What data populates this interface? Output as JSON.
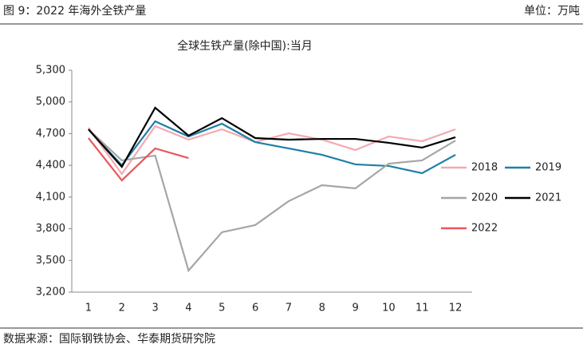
{
  "header": {
    "title": "图 9：2022 年海外全铁产量",
    "unit": "单位：万吨"
  },
  "chart_data": {
    "type": "line",
    "title": "全球生铁产量(除中国):当月",
    "categories": [
      "1",
      "2",
      "3",
      "4",
      "5",
      "6",
      "7",
      "8",
      "9",
      "10",
      "11",
      "12"
    ],
    "ylim": [
      3200,
      5300
    ],
    "yticks": [
      {
        "value": 3200,
        "label": "3,200"
      },
      {
        "value": 3500,
        "label": "3,500"
      },
      {
        "value": 3800,
        "label": "3,800"
      },
      {
        "value": 4100,
        "label": "4,100"
      },
      {
        "value": 4400,
        "label": "4,400"
      },
      {
        "value": 4700,
        "label": "4,700"
      },
      {
        "value": 5000,
        "label": "5,000"
      },
      {
        "value": 5300,
        "label": "5,300"
      }
    ],
    "series": [
      {
        "name": "2018",
        "color": "#f4a9b1",
        "values": [
          4756,
          4318,
          4771,
          4643,
          4741,
          4620,
          4703,
          4643,
          4545,
          4673,
          4628,
          4741
        ]
      },
      {
        "name": "2019",
        "color": "#1f7fa8",
        "values": [
          4741,
          4401,
          4817,
          4673,
          4794,
          4620,
          4560,
          4500,
          4409,
          4394,
          4326,
          4500
        ]
      },
      {
        "name": "2020",
        "color": "#a6a6a6",
        "values": [
          4741,
          4447,
          4492,
          3404,
          3767,
          3835,
          4061,
          4212,
          4182,
          4416,
          4447,
          4635
        ]
      },
      {
        "name": "2021",
        "color": "#000000",
        "values": [
          4741,
          4386,
          4945,
          4681,
          4847,
          4658,
          4643,
          4650,
          4650,
          4613,
          4568,
          4666
        ]
      },
      {
        "name": "2022",
        "color": "#e9575c",
        "values": [
          4658,
          4258,
          4560,
          4469,
          null,
          null,
          null,
          null,
          null,
          null,
          null,
          null
        ]
      }
    ]
  },
  "footer": {
    "source": "数据来源：国际钢铁协会、华泰期货研究院"
  }
}
